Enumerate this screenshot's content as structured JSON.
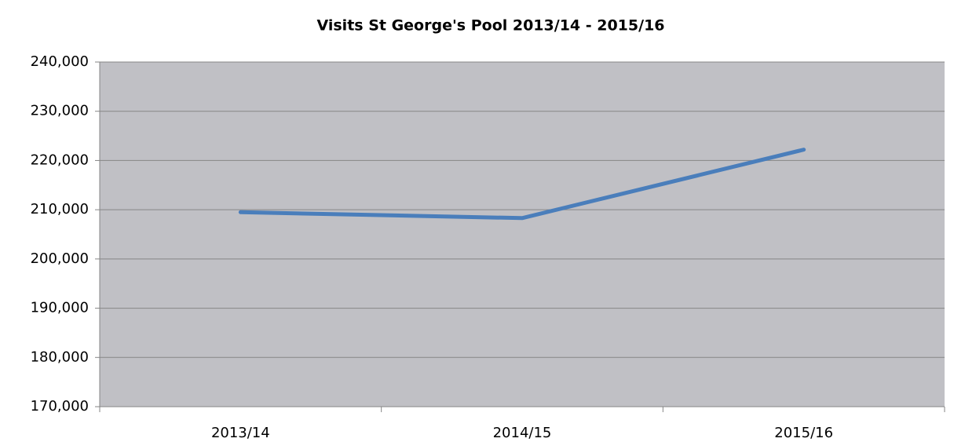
{
  "chart_data": {
    "type": "line",
    "title": "Visits St George's Pool 2013/14 - 2015/16",
    "categories": [
      "2013/14",
      "2014/15",
      "2015/16"
    ],
    "series": [
      {
        "name": "Visits",
        "color": "#4a7ebb",
        "values": [
          209500,
          208300,
          222200
        ]
      }
    ],
    "ylim": [
      170000,
      240000
    ],
    "yticks": [
      {
        "value": 170000,
        "label": "170,000"
      },
      {
        "value": 180000,
        "label": "180,000"
      },
      {
        "value": 190000,
        "label": "190,000"
      },
      {
        "value": 200000,
        "label": "200,000"
      },
      {
        "value": 210000,
        "label": "210,000"
      },
      {
        "value": 220000,
        "label": "220,000"
      },
      {
        "value": 230000,
        "label": "230,000"
      },
      {
        "value": 240000,
        "label": "240,000"
      }
    ],
    "grid": true
  }
}
